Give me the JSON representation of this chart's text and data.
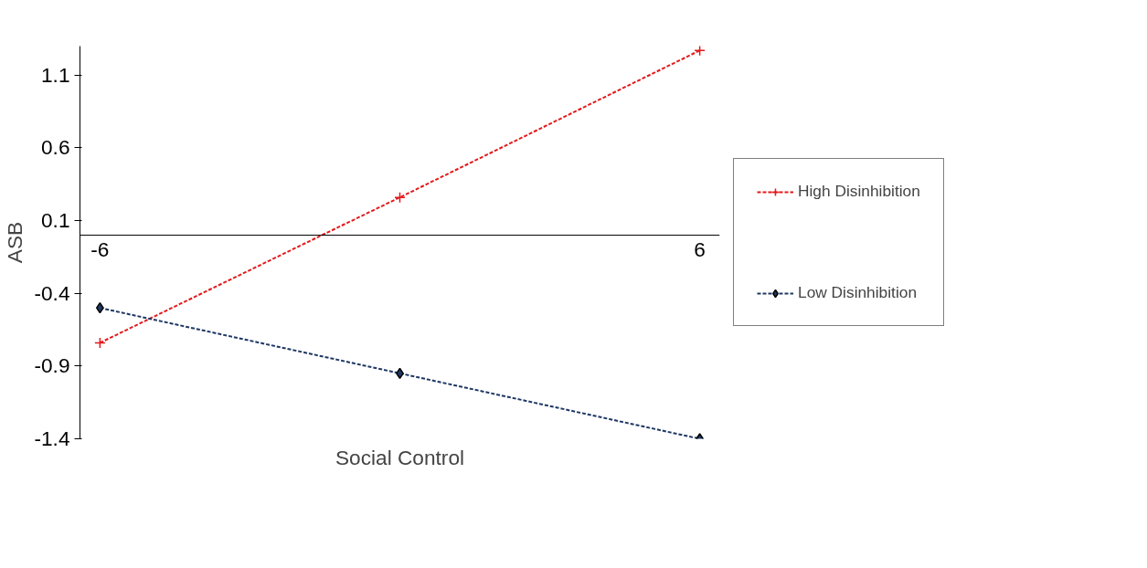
{
  "chart_data": {
    "type": "line",
    "xlabel": "Social Control",
    "ylabel": "ASB",
    "x": [
      -6,
      0,
      6
    ],
    "xlim": [
      -6.4,
      6.4
    ],
    "xticks": [
      -6,
      6
    ],
    "ylim": [
      -1.4,
      1.3
    ],
    "yticks": [
      -1.4,
      -0.9,
      -0.4,
      0.1,
      0.6,
      1.1
    ],
    "grid": false,
    "legend": "right",
    "line_style": "dashed",
    "series": [
      {
        "name": "High Disinhibition",
        "color": "#e31a1c",
        "marker": "cross",
        "values": [
          -0.74,
          0.26,
          1.27
        ]
      },
      {
        "name": "Low Disinhibition",
        "color": "#1f3864",
        "marker": "diamond",
        "values": [
          -0.5,
          -0.95,
          -1.4
        ]
      }
    ]
  }
}
